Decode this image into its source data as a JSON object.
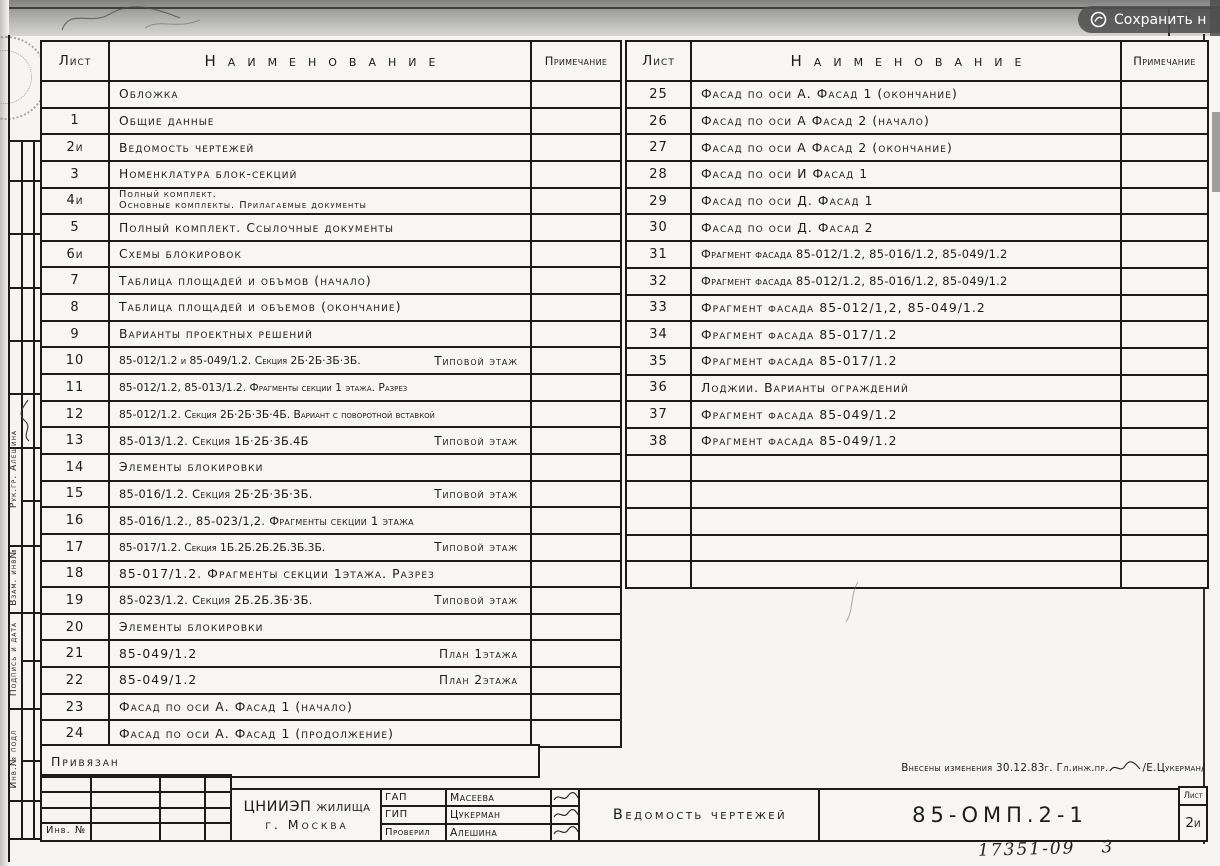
{
  "save_overlay": {
    "label": "Сохранить н"
  },
  "page_corner_number": "3",
  "left_table": {
    "headers": {
      "sheet": "Лист",
      "name": "Наименование",
      "note": "Примечание"
    },
    "rows": [
      {
        "num": "",
        "name": "Обложка"
      },
      {
        "num": "1",
        "name": "Общие данные"
      },
      {
        "num": "2и",
        "name": "Ведомость чертежей"
      },
      {
        "num": "3",
        "name": "Номенклатура блок-секций"
      },
      {
        "num": "4и",
        "line1": "Полный комплект.",
        "line2": "Основные комплекты. Прилагаемые документы"
      },
      {
        "num": "5",
        "name": "Полный комплект. Ссылочные документы"
      },
      {
        "num": "6и",
        "name": "Схемы блокировок"
      },
      {
        "num": "7",
        "name": "Таблица площадей и объмов (начало)"
      },
      {
        "num": "8",
        "name": "Таблица площадей и объемов (окончание)"
      },
      {
        "num": "9",
        "name": "Варианты проектных решений"
      },
      {
        "num": "10",
        "name": "85-012/1.2 и 85-049/1.2. Секция 2Б·2Б·3Б·3Б.",
        "tail": "Типовой этаж"
      },
      {
        "num": "11",
        "name": "85-012/1.2, 85-013/1.2. Фрагменты секции 1 этажа. Разрез"
      },
      {
        "num": "12",
        "name": "85-012/1.2. Секция 2Б·2Б·3Б·4Б. Вариант с поворотной вставкой"
      },
      {
        "num": "13",
        "name": "85-013/1.2. Секция 1Б·2Б·3Б.4Б",
        "tail": "Типовой этаж"
      },
      {
        "num": "14",
        "name": "Элементы блокировки"
      },
      {
        "num": "15",
        "name": "85-016/1.2. Секция 2Б·2Б·3Б·3Б.",
        "tail": "Типовой этаж"
      },
      {
        "num": "16",
        "name": "85-016/1.2., 85-023/1,2. Фрагменты секции 1 этажа"
      },
      {
        "num": "17",
        "name": "85-017/1.2. Секция 1Б.2Б.2Б.2Б.3Б.3Б.",
        "tail": "Типовой этаж"
      },
      {
        "num": "18",
        "name": "85-017/1.2. Фрагменты секции 1этажа. Разрез"
      },
      {
        "num": "19",
        "name": "85-023/1.2. Секция 2Б.2Б.3Б·3Б.",
        "tail": "Типовой этаж"
      },
      {
        "num": "20",
        "name": "Элементы блокировки"
      },
      {
        "num": "21",
        "name": "85-049/1.2",
        "tail": "План 1этажа"
      },
      {
        "num": "22",
        "name": "85-049/1.2",
        "tail": "План 2этажа"
      },
      {
        "num": "23",
        "name": "Фасад по оси А. Фасад 1 (начало)"
      },
      {
        "num": "24",
        "name": "Фасад по оси А. Фасад 1 (продолжение)"
      }
    ]
  },
  "right_table": {
    "headers": {
      "sheet": "Лист",
      "name": "Наименование",
      "note": "Примечание"
    },
    "rows": [
      {
        "num": "25",
        "name": "Фасад по оси А. Фасад 1 (окончание)"
      },
      {
        "num": "26",
        "name": "Фасад по оси А Фасад 2 (начало)"
      },
      {
        "num": "27",
        "name": "Фасад по оси А Фасад 2 (окончание)"
      },
      {
        "num": "28",
        "name": "Фасад по оси И Фасад 1"
      },
      {
        "num": "29",
        "name": "Фасад по оси Д. Фасад 1"
      },
      {
        "num": "30",
        "name": "Фасад по оси Д. Фасад 2"
      },
      {
        "num": "31",
        "name": "Фрагмент фасада 85-012/1.2, 85-016/1.2, 85-049/1.2"
      },
      {
        "num": "32",
        "name": "Фрагмент фасада 85-012/1.2, 85-016/1.2, 85-049/1.2"
      },
      {
        "num": "33",
        "name": "Фрагмент фасада 85-012/1,2, 85-049/1.2"
      },
      {
        "num": "34",
        "name": "Фрагмент фасада 85-017/1.2"
      },
      {
        "num": "35",
        "name": "Фрагмент фасада 85-017/1.2"
      },
      {
        "num": "36",
        "name": "Лоджии. Варианты ограждений"
      },
      {
        "num": "37",
        "name": "Фрагмент фасада 85-049/1.2"
      },
      {
        "num": "38",
        "name": "Фрагмент фасада 85-049/1.2"
      },
      {
        "num": "",
        "name": ""
      },
      {
        "num": "",
        "name": ""
      },
      {
        "num": "",
        "name": ""
      },
      {
        "num": "",
        "name": ""
      },
      {
        "num": "",
        "name": ""
      }
    ]
  },
  "pinned_label": "Привязан",
  "left_margin": {
    "group_lead": "Рук.гр. Алешина",
    "replacement_inv": "Взам. инв№",
    "signature_date": "Подпись и дата",
    "inventory": "Инв.№ подл"
  },
  "title_block": {
    "org_name": "ЦНИИЭП жилища",
    "org_city": "г. Москва",
    "roles": [
      {
        "role": "ГАП",
        "name": "Масеева"
      },
      {
        "role": "ГИП",
        "name": "Цукерман"
      },
      {
        "role": "Проверил",
        "name": "Алешина"
      }
    ],
    "doc_title": "Ведомость чертежей",
    "doc_code": "85-ОМП.2-1",
    "sheet_label": "Лист",
    "sheet_number": "2и",
    "inv_no_label": "Инв. №",
    "changes_note": "Внесены изменения 30.12.83г.  Гл.инж.пр.",
    "changes_sign_name": "/Е.Цукерман/",
    "handwritten_number": "17351-09",
    "handwritten_page": "3"
  }
}
